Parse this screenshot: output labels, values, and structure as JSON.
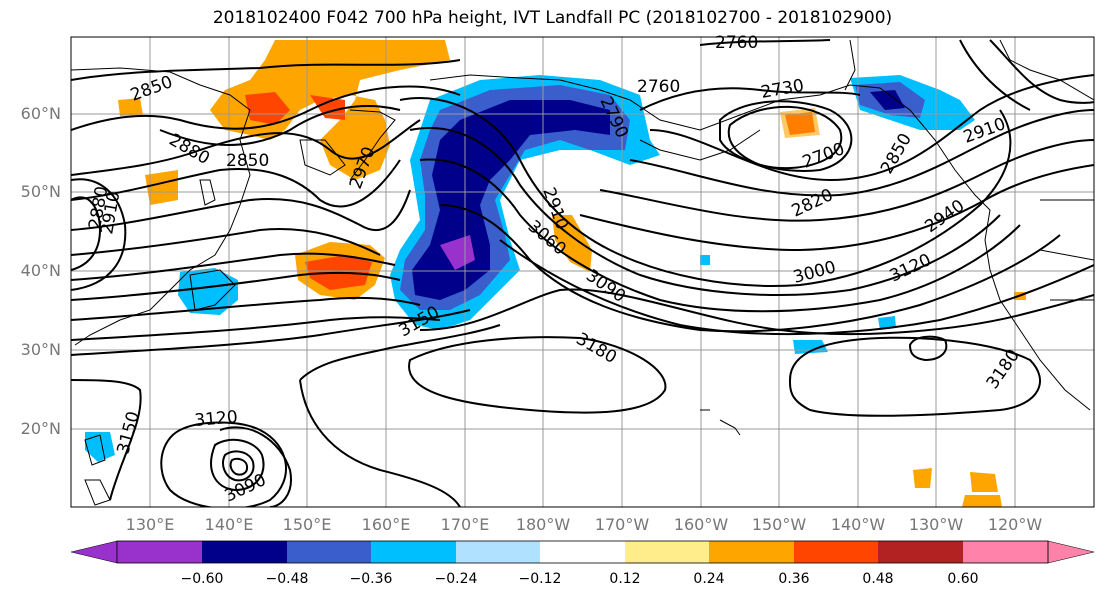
{
  "title": "2018102400 F042 700 hPa height, IVT Landfall PC (2018102700 - 2018102900)",
  "lat_labels": [
    "60°N",
    "50°N",
    "40°N",
    "30°N",
    "20°N"
  ],
  "lon_labels": [
    "130°E",
    "140°E",
    "150°E",
    "160°E",
    "170°E",
    "180°W",
    "170°W",
    "160°W",
    "150°W",
    "140°W",
    "130°W",
    "120°W"
  ],
  "contour_labels": [
    "2850",
    "2880",
    "2850",
    "2910",
    "2880",
    "2910",
    "2970",
    "2760",
    "2760",
    "2790",
    "2730",
    "2910",
    "2700",
    "2850",
    "2820",
    "2940",
    "3030",
    "3060",
    "3000",
    "3090",
    "3120",
    "3150",
    "3180",
    "3180",
    "3150",
    "3120",
    "3090"
  ],
  "colorbar": {
    "ticks": [
      "−0.60",
      "−0.48",
      "−0.36",
      "−0.24",
      "−0.12",
      "0.12",
      "0.24",
      "0.36",
      "0.48",
      "0.60"
    ],
    "colors": [
      "#9932cc",
      "#00008b",
      "#3a5fcd",
      "#00bfff",
      "#b0e2ff",
      "#ffffff",
      "#ffec8b",
      "#ffa500",
      "#ff4500",
      "#b22222",
      "#ff82ab"
    ]
  }
}
